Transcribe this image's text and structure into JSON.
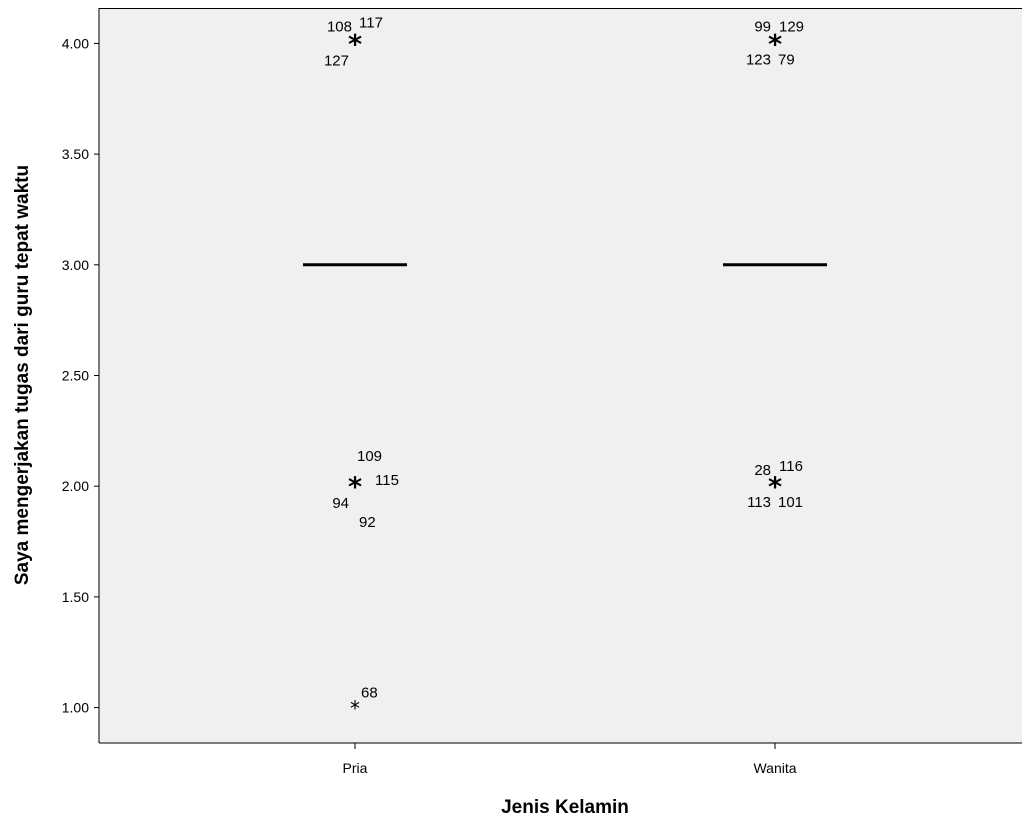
{
  "chart_data": {
    "type": "boxplot",
    "xlabel": "Jenis Kelamin",
    "ylabel": "Saya mengerjakan tugas dari guru tepat waktu",
    "ylim": [
      0.84,
      4.16
    ],
    "yticks": [
      "1.00",
      "1.50",
      "2.00",
      "2.50",
      "3.00",
      "3.50",
      "4.00"
    ],
    "grid": false,
    "categories": [
      "Pria",
      "Wanita"
    ],
    "series": [
      {
        "category": "Pria",
        "median": 3.0,
        "q1": 3.0,
        "q3": 3.0,
        "outliers": [
          {
            "value": 4.0,
            "cases": [
              "108",
              "117",
              "127"
            ],
            "marker": "extreme"
          },
          {
            "value": 2.0,
            "cases": [
              "109",
              "115",
              "94",
              "92"
            ],
            "marker": "extreme"
          },
          {
            "value": 1.0,
            "cases": [
              "68"
            ],
            "marker": "extreme"
          }
        ]
      },
      {
        "category": "Wanita",
        "median": 3.0,
        "q1": 3.0,
        "q3": 3.0,
        "outliers": [
          {
            "value": 4.0,
            "cases": [
              "99",
              "129",
              "123",
              "79"
            ],
            "marker": "extreme"
          },
          {
            "value": 2.0,
            "cases": [
              "28",
              "116",
              "113",
              "101"
            ],
            "marker": "extreme"
          }
        ]
      }
    ]
  }
}
